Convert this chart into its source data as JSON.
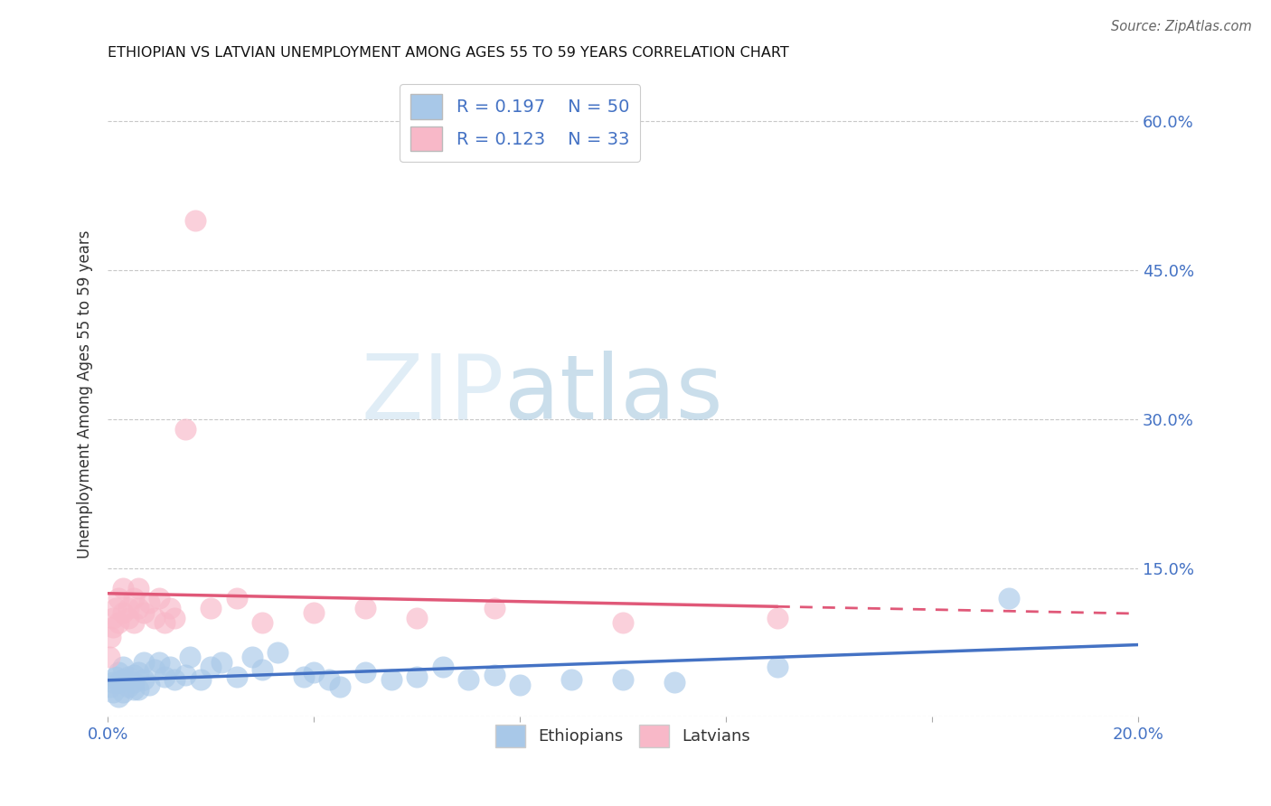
{
  "title": "ETHIOPIAN VS LATVIAN UNEMPLOYMENT AMONG AGES 55 TO 59 YEARS CORRELATION CHART",
  "source": "Source: ZipAtlas.com",
  "ylabel": "Unemployment Among Ages 55 to 59 years",
  "xlim": [
    0.0,
    0.2
  ],
  "ylim": [
    0.0,
    0.65
  ],
  "x_ticks": [
    0.0,
    0.04,
    0.08,
    0.12,
    0.16,
    0.2
  ],
  "x_tick_labels": [
    "0.0%",
    "",
    "",
    "",
    "",
    "20.0%"
  ],
  "y_ticks_right": [
    0.0,
    0.15,
    0.3,
    0.45,
    0.6
  ],
  "y_tick_labels_right": [
    "",
    "15.0%",
    "30.0%",
    "45.0%",
    "60.0%"
  ],
  "ethiopians_color": "#a8c8e8",
  "latvians_color": "#f8b8c8",
  "ethiopians_line_color": "#4472c4",
  "latvians_line_color": "#e05878",
  "background_color": "#ffffff",
  "grid_color": "#c8c8c8",
  "R_ethiopians": 0.197,
  "N_ethiopians": 50,
  "R_latvians": 0.123,
  "N_latvians": 33,
  "eth_x": [
    0.0005,
    0.001,
    0.001,
    0.0015,
    0.002,
    0.002,
    0.002,
    0.003,
    0.003,
    0.003,
    0.004,
    0.004,
    0.005,
    0.005,
    0.005,
    0.006,
    0.006,
    0.007,
    0.007,
    0.008,
    0.009,
    0.01,
    0.011,
    0.012,
    0.013,
    0.015,
    0.016,
    0.018,
    0.02,
    0.022,
    0.025,
    0.028,
    0.03,
    0.033,
    0.038,
    0.04,
    0.043,
    0.045,
    0.05,
    0.055,
    0.06,
    0.065,
    0.07,
    0.075,
    0.08,
    0.09,
    0.1,
    0.11,
    0.13,
    0.175
  ],
  "eth_y": [
    0.03,
    0.025,
    0.035,
    0.04,
    0.02,
    0.035,
    0.045,
    0.025,
    0.038,
    0.05,
    0.03,
    0.04,
    0.028,
    0.042,
    0.035,
    0.045,
    0.028,
    0.038,
    0.055,
    0.032,
    0.048,
    0.055,
    0.04,
    0.05,
    0.038,
    0.042,
    0.06,
    0.038,
    0.05,
    0.055,
    0.04,
    0.06,
    0.048,
    0.065,
    0.04,
    0.045,
    0.038,
    0.03,
    0.045,
    0.038,
    0.04,
    0.05,
    0.038,
    0.042,
    0.032,
    0.038,
    0.038,
    0.035,
    0.05,
    0.12
  ],
  "lat_x": [
    0.0003,
    0.0005,
    0.001,
    0.001,
    0.0015,
    0.002,
    0.002,
    0.003,
    0.003,
    0.004,
    0.004,
    0.005,
    0.005,
    0.006,
    0.006,
    0.007,
    0.008,
    0.009,
    0.01,
    0.011,
    0.012,
    0.013,
    0.015,
    0.017,
    0.02,
    0.025,
    0.03,
    0.04,
    0.05,
    0.06,
    0.075,
    0.1,
    0.13
  ],
  "lat_y": [
    0.06,
    0.08,
    0.1,
    0.09,
    0.11,
    0.12,
    0.095,
    0.105,
    0.13,
    0.11,
    0.1,
    0.12,
    0.095,
    0.13,
    0.11,
    0.105,
    0.115,
    0.1,
    0.12,
    0.095,
    0.11,
    0.1,
    0.29,
    0.5,
    0.11,
    0.12,
    0.095,
    0.105,
    0.11,
    0.1,
    0.11,
    0.095,
    0.1
  ],
  "watermark_zip": "ZIP",
  "watermark_atlas": "atlas"
}
